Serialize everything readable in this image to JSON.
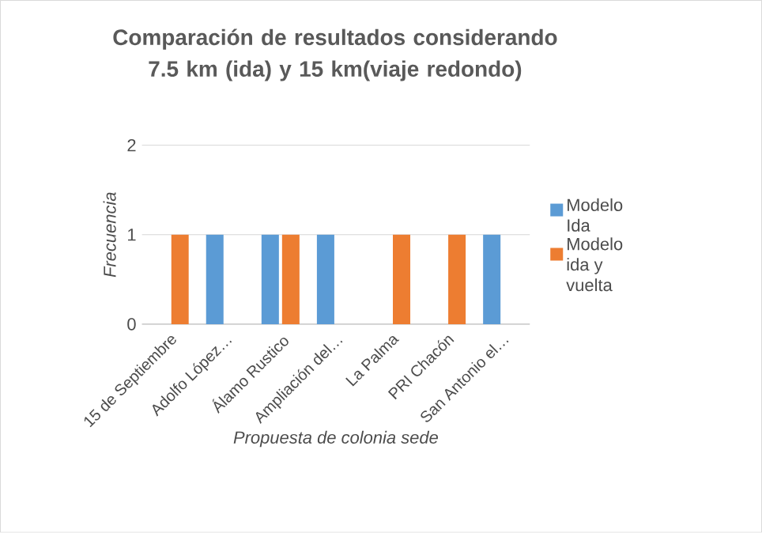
{
  "chart_data": {
    "type": "bar",
    "title": "Comparación de resultados considerando 7.5 km (ida) y 15 km(viaje redondo)",
    "xlabel": "Propuesta de colonia sede",
    "ylabel": "Frecuencia",
    "categories": [
      "15 de Septiembre",
      "Adolfo López…",
      "Álamo Rustico",
      "Ampliación del…",
      "La Palma",
      "PRI Chacón",
      "San Antonio el…"
    ],
    "series": [
      {
        "name": "Modelo Ida",
        "color": "#5b9bd5",
        "values": [
          0,
          1,
          1,
          1,
          0,
          0,
          1
        ]
      },
      {
        "name": "Modelo ida y vuelta",
        "color": "#ed7d31",
        "values": [
          1,
          0,
          1,
          0,
          1,
          1,
          0
        ]
      }
    ],
    "ylim": [
      0,
      2
    ],
    "yticks": [
      0,
      1,
      2
    ],
    "grid": "y",
    "legend": "right"
  }
}
